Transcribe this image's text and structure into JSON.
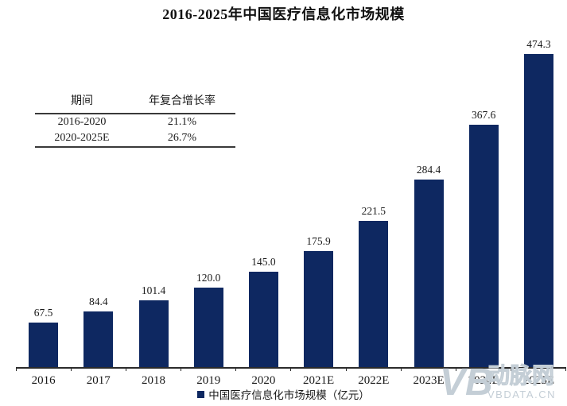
{
  "title": "2016-2025年中国医疗信息化市场规模",
  "cagr_table": {
    "headers": [
      "期间",
      "年复合增长率"
    ],
    "rows": [
      [
        "2016-2020",
        "21.1%"
      ],
      [
        "2020-2025E",
        "26.7%"
      ]
    ]
  },
  "chart_data": {
    "type": "bar",
    "title": "2016-2025年中国医疗信息化市场规模",
    "categories": [
      "2016",
      "2017",
      "2018",
      "2019",
      "2020",
      "2021E",
      "2022E",
      "2023E",
      "2024E",
      "2025E"
    ],
    "values": [
      67.5,
      84.4,
      101.4,
      120.0,
      145.0,
      175.9,
      221.5,
      284.4,
      367.6,
      474.3
    ],
    "value_labels": [
      "67.5",
      "84.4",
      "101.4",
      "120.0",
      "145.0",
      "175.9",
      "221.5",
      "284.4",
      "367.6",
      "474.3"
    ],
    "legend": "中国医疗信息化市场规模（亿元）",
    "unit": "亿元",
    "bar_color": "#0e2861",
    "ylim": [
      0,
      500
    ],
    "grid": false,
    "legend_position": "bottom",
    "value_labels_shown": true
  },
  "watermark": {
    "logo": "VB",
    "brand_cn": "动脉网",
    "brand_url": "VBDATA.CN",
    "color": "#c4ced6"
  }
}
